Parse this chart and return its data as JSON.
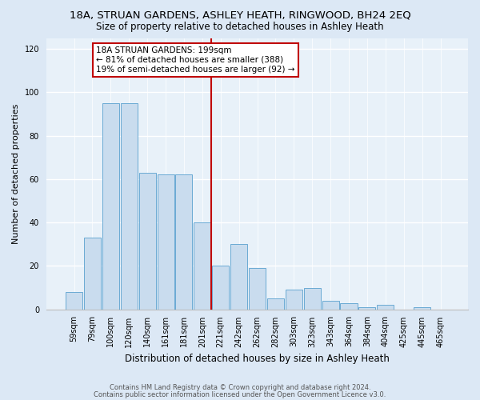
{
  "title": "18A, STRUAN GARDENS, ASHLEY HEATH, RINGWOOD, BH24 2EQ",
  "subtitle": "Size of property relative to detached houses in Ashley Heath",
  "xlabel": "Distribution of detached houses by size in Ashley Heath",
  "ylabel": "Number of detached properties",
  "bar_labels": [
    "59sqm",
    "79sqm",
    "100sqm",
    "120sqm",
    "140sqm",
    "161sqm",
    "181sqm",
    "201sqm",
    "221sqm",
    "242sqm",
    "262sqm",
    "282sqm",
    "303sqm",
    "323sqm",
    "343sqm",
    "364sqm",
    "384sqm",
    "404sqm",
    "425sqm",
    "445sqm",
    "465sqm"
  ],
  "bar_values": [
    8,
    33,
    95,
    95,
    63,
    62,
    62,
    40,
    20,
    30,
    19,
    5,
    9,
    10,
    4,
    3,
    1,
    2,
    0,
    1,
    0
  ],
  "bar_color": "#c9dcee",
  "bar_edge_color": "#6aaad4",
  "vline_color": "#c00000",
  "annotation_title": "18A STRUAN GARDENS: 199sqm",
  "annotation_line1": "← 81% of detached houses are smaller (388)",
  "annotation_line2": "19% of semi-detached houses are larger (92) →",
  "annotation_box_color": "#ffffff",
  "annotation_box_edge": "#c00000",
  "ylim": [
    0,
    125
  ],
  "yticks": [
    0,
    20,
    40,
    60,
    80,
    100,
    120
  ],
  "footer1": "Contains HM Land Registry data © Crown copyright and database right 2024.",
  "footer2": "Contains public sector information licensed under the Open Government Licence v3.0.",
  "bg_color": "#dce8f5",
  "plot_bg_color": "#e8f1f9",
  "title_fontsize": 9.5,
  "subtitle_fontsize": 8.5,
  "ylabel_fontsize": 8,
  "xlabel_fontsize": 8.5,
  "tick_fontsize": 7,
  "footer_fontsize": 6,
  "annot_fontsize": 7.5
}
